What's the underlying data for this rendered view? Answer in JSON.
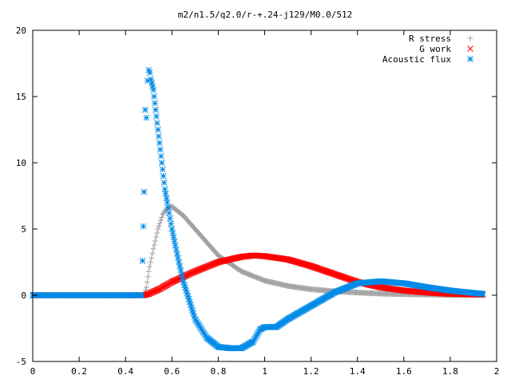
{
  "chart_data": {
    "type": "scatter",
    "title": "m2/n1.5/q2.0/r-+.24-j129/M0.0/512",
    "xlabel": "",
    "ylabel": "",
    "xlim": [
      0,
      2
    ],
    "ylim": [
      -5,
      20
    ],
    "x_ticks": [
      "0",
      "0.2",
      "0.4",
      "0.6",
      "0.8",
      "1",
      "1.2",
      "1.4",
      "1.6",
      "1.8",
      "2"
    ],
    "y_ticks": [
      "-5",
      "0",
      "5",
      "10",
      "15",
      "20"
    ],
    "grid": false,
    "legend_position": "top-right",
    "series": [
      {
        "name": "R stress",
        "marker": "plus",
        "color": "#a0a0a0",
        "x": [
          0,
          0.2,
          0.4,
          0.48,
          0.49,
          0.5,
          0.52,
          0.54,
          0.56,
          0.58,
          0.6,
          0.65,
          0.7,
          0.75,
          0.8,
          0.9,
          1.0,
          1.1,
          1.2,
          1.3,
          1.4,
          1.5,
          1.6,
          1.7,
          1.8,
          1.94
        ],
        "y": [
          0,
          0,
          0,
          0,
          0.6,
          1.8,
          3.5,
          5.0,
          6.1,
          6.6,
          6.7,
          6.0,
          5.0,
          4.0,
          3.0,
          1.8,
          1.1,
          0.7,
          0.45,
          0.3,
          0.2,
          0.12,
          0.08,
          0.05,
          0.02,
          0.01
        ]
      },
      {
        "name": "G work",
        "marker": "cross",
        "color": "#ff0000",
        "x": [
          0,
          0.2,
          0.4,
          0.48,
          0.5,
          0.55,
          0.6,
          0.7,
          0.8,
          0.9,
          0.95,
          1.0,
          1.1,
          1.2,
          1.3,
          1.4,
          1.5,
          1.6,
          1.7,
          1.8,
          1.94
        ],
        "y": [
          0,
          0,
          0,
          0,
          0.1,
          0.5,
          1.0,
          1.8,
          2.5,
          2.9,
          3.0,
          2.95,
          2.7,
          2.2,
          1.6,
          1.0,
          0.6,
          0.35,
          0.2,
          0.1,
          0.05
        ]
      },
      {
        "name": "Acoustic flux",
        "marker": "star",
        "color": "#008be8",
        "x": [
          0,
          0.2,
          0.4,
          0.47,
          0.48,
          0.485,
          0.49,
          0.495,
          0.5,
          0.505,
          0.51,
          0.52,
          0.53,
          0.54,
          0.55,
          0.56,
          0.57,
          0.58,
          0.6,
          0.63,
          0.65,
          0.7,
          0.75,
          0.8,
          0.85,
          0.9,
          0.95,
          0.98,
          1.0,
          1.02,
          1.05,
          1.1,
          1.2,
          1.3,
          1.4,
          1.5,
          1.6,
          1.7,
          1.8,
          1.94
        ],
        "y": [
          0,
          0,
          0,
          0,
          7.8,
          14.0,
          13.4,
          16.2,
          17.0,
          16.8,
          16.3,
          15.5,
          14.0,
          12.5,
          11.0,
          9.5,
          8.0,
          7.0,
          5.0,
          2.5,
          1.0,
          -1.8,
          -3.2,
          -3.9,
          -4.0,
          -4.0,
          -3.5,
          -2.6,
          -2.4,
          -2.4,
          -2.4,
          -1.8,
          -0.8,
          0.2,
          0.9,
          1.05,
          0.9,
          0.6,
          0.35,
          0.1
        ]
      }
    ]
  }
}
